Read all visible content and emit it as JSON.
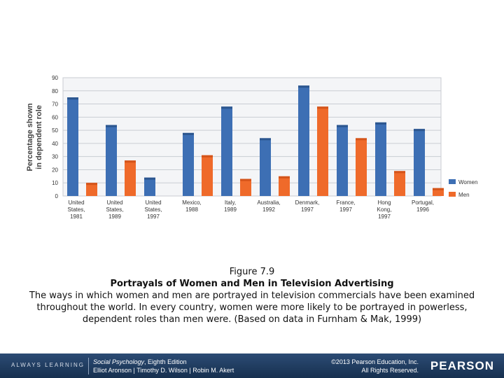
{
  "chart_data": {
    "type": "bar",
    "ylabel": "Percentage shown in dependent role",
    "ylabel_lines": [
      "Percentage shown",
      "in dependent role"
    ],
    "ylim": [
      0,
      90
    ],
    "yticks": [
      "0",
      "10",
      "20",
      "30",
      "40",
      "50",
      "60",
      "70",
      "80",
      "90"
    ],
    "categories": [
      [
        "United",
        "States,",
        "1981"
      ],
      [
        "United",
        "States,",
        "1989"
      ],
      [
        "United",
        "States,",
        "1997"
      ],
      [
        "Mexico,",
        "1988"
      ],
      [
        "Italy,",
        "1989"
      ],
      [
        "Australia,",
        "1992"
      ],
      [
        "Denmark,",
        "1997"
      ],
      [
        "France,",
        "1997"
      ],
      [
        "Hong",
        "Kong,",
        "1997"
      ],
      [
        "Portugal,",
        "1996"
      ]
    ],
    "series": [
      {
        "name": "Women",
        "color": "#3d6fb4",
        "values": [
          75,
          54,
          14,
          48,
          68,
          44,
          84,
          54,
          56,
          51
        ]
      },
      {
        "name": "Men",
        "color": "#ef6a2a",
        "values": [
          10,
          27,
          null,
          31,
          13,
          15,
          68,
          44,
          19,
          6
        ]
      }
    ],
    "legend": "right"
  },
  "caption": {
    "figure": "Figure 7.9",
    "title": "Portrayals of Women and Men in Television Advertising",
    "text": "The ways in which women and men are portrayed in television commercials have been examined throughout the world. In every country, women were more likely to be portrayed in powerless, dependent roles than men were. (Based on data in Furnham & Mak, 1999)"
  },
  "footer": {
    "tagline": "ALWAYS LEARNING",
    "book_title": "Social Psychology",
    "edition": ", Eighth Edition",
    "authors": "Elliot Aronson | Timothy D. Wilson | Robin M. Akert",
    "copyright": "©2013 Pearson Education, Inc.",
    "rights": "All Rights Reserved.",
    "logo": "PEARSON"
  }
}
